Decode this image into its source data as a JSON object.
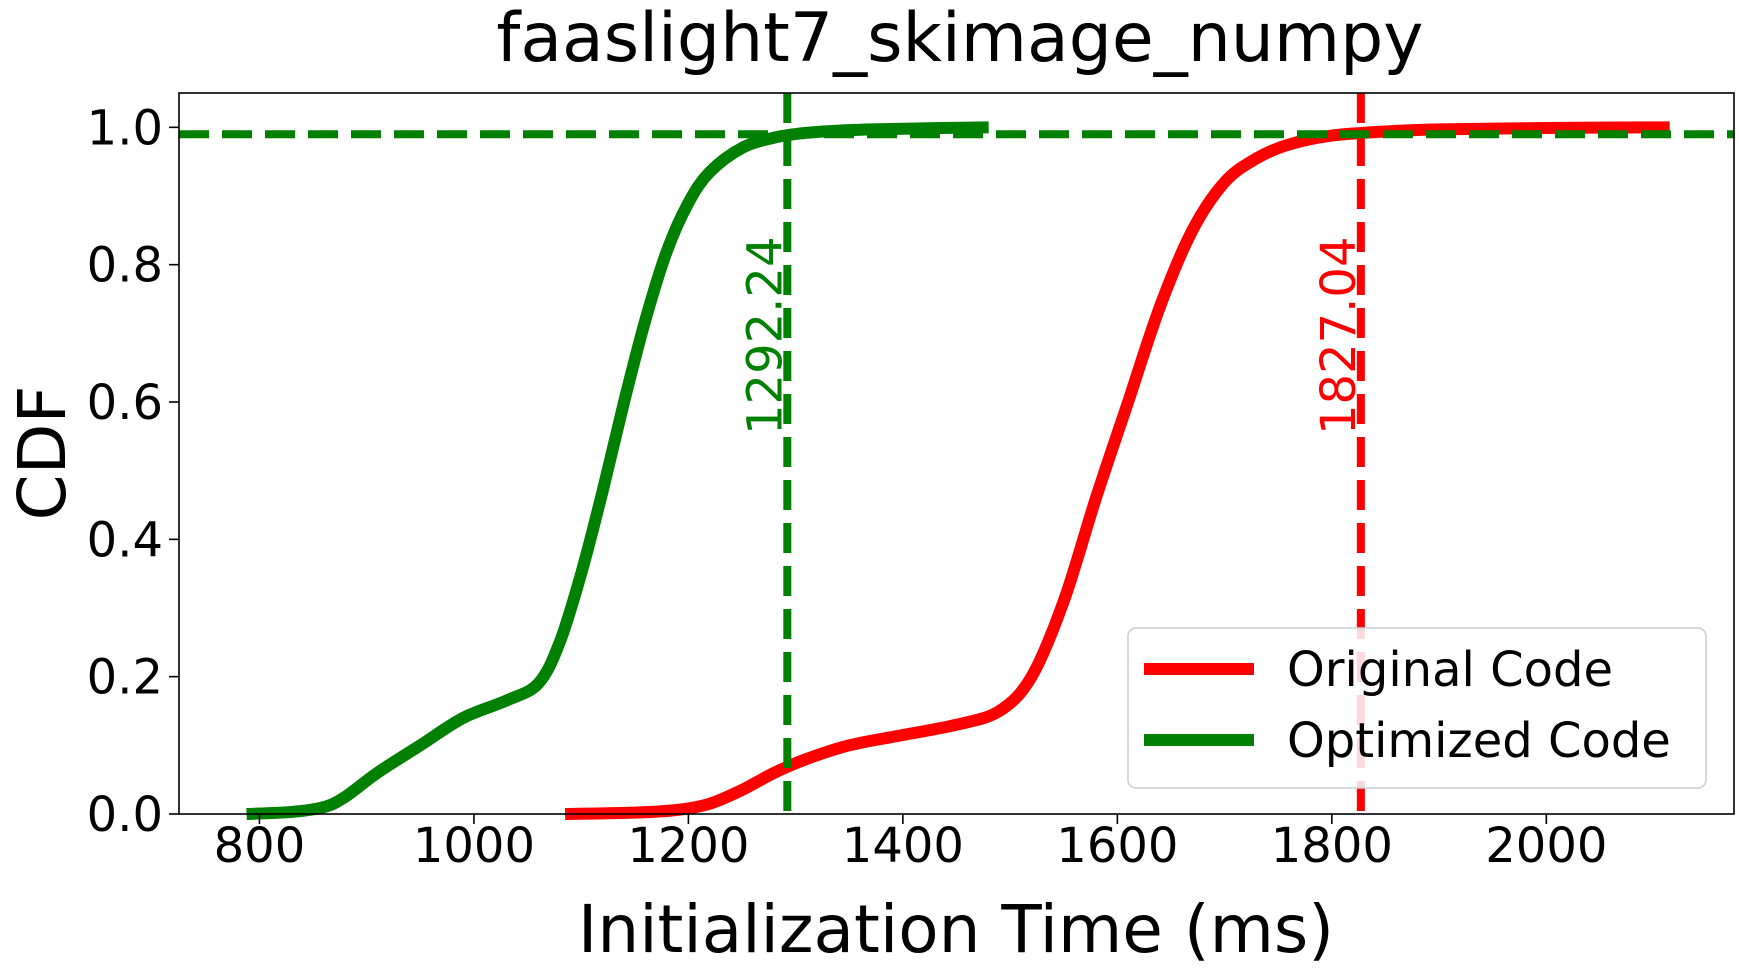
{
  "chart_data": {
    "type": "line",
    "title": "faaslight7_skimage_numpy",
    "xlabel": "Initialization Time (ms)",
    "ylabel": "CDF",
    "xlim": [
      725,
      2175
    ],
    "ylim": [
      0,
      1.05
    ],
    "xticks": [
      800,
      1000,
      1200,
      1400,
      1600,
      1800,
      2000
    ],
    "xtick_labels": [
      "800",
      "1000",
      "1200",
      "1400",
      "1600",
      "1800",
      "2000"
    ],
    "yticks": [
      0,
      0.2,
      0.4,
      0.6,
      0.8,
      1.0
    ],
    "ytick_labels": [
      "0.0",
      "0.2",
      "0.4",
      "0.6",
      "0.8",
      "1.0"
    ],
    "grid": false,
    "legend_position": "lower-right",
    "series": [
      {
        "name": "Original Code",
        "color": "#ff0000",
        "x": [
          1085,
          1150,
          1190,
          1220,
          1250,
          1280,
          1310,
          1350,
          1400,
          1450,
          1490,
          1520,
          1550,
          1580,
          1610,
          1640,
          1670,
          1700,
          1730,
          1760,
          1800,
          1850,
          1900,
          2000,
          2115
        ],
        "y": [
          0.0,
          0.002,
          0.006,
          0.015,
          0.035,
          0.06,
          0.08,
          0.1,
          0.115,
          0.13,
          0.15,
          0.2,
          0.31,
          0.46,
          0.6,
          0.74,
          0.85,
          0.92,
          0.955,
          0.975,
          0.988,
          0.994,
          0.997,
          0.999,
          1.0
        ]
      },
      {
        "name": "Optimized Code",
        "color": "#008000",
        "x": [
          788,
          830,
          860,
          880,
          910,
          950,
          990,
          1030,
          1060,
          1080,
          1100,
          1120,
          1140,
          1160,
          1180,
          1200,
          1220,
          1250,
          1280,
          1310,
          1350,
          1400,
          1480
        ],
        "y": [
          0.0,
          0.003,
          0.01,
          0.025,
          0.06,
          0.1,
          0.14,
          0.165,
          0.19,
          0.25,
          0.35,
          0.47,
          0.6,
          0.72,
          0.82,
          0.89,
          0.935,
          0.97,
          0.985,
          0.992,
          0.996,
          0.998,
          1.0
        ]
      }
    ],
    "reference_lines": [
      {
        "orientation": "vertical",
        "value": 1292.24,
        "label": "1292.24",
        "color": "#008000"
      },
      {
        "orientation": "vertical",
        "value": 1827.04,
        "label": "1827.04",
        "color": "#ff0000"
      },
      {
        "orientation": "horizontal",
        "value": 0.99,
        "color": "#008000"
      }
    ]
  }
}
